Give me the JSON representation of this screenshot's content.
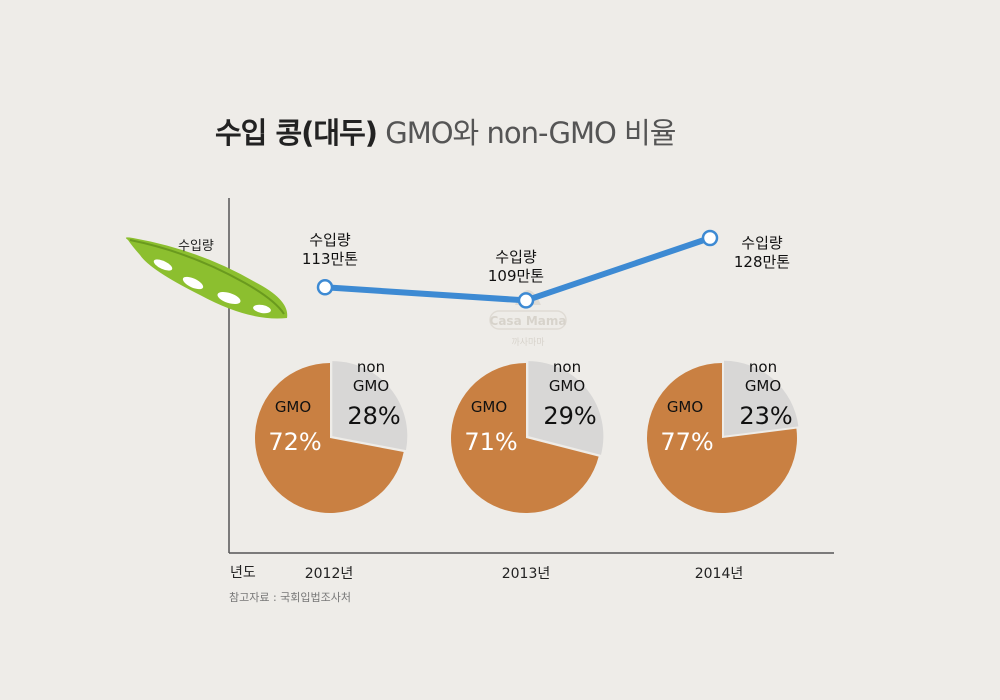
{
  "title": {
    "main": "수입 콩(대두)",
    "rest": " GMO와 non-GMO 비율"
  },
  "chart_data": {
    "type": "line+pie",
    "title": "수입 콩(대두) GMO와 non-GMO 비율",
    "xlabel": "년도",
    "ylabel": "수입량",
    "categories": [
      "2012년",
      "2013년",
      "2014년"
    ],
    "import_volume": {
      "unit": "만톤",
      "values": [
        113,
        109,
        128
      ],
      "labels": [
        {
          "line1": "수입량",
          "line2": "113만톤"
        },
        {
          "line1": "수입량",
          "line2": "109만톤"
        },
        {
          "line1": "수입량",
          "line2": "128만톤"
        }
      ],
      "ylim": [
        100,
        135
      ]
    },
    "pies": [
      {
        "year": "2012년",
        "gmo": 72,
        "non_gmo": 28,
        "gmo_label": "GMO",
        "gmo_pct": "72%",
        "non1": "non",
        "non2": "GMO",
        "non_pct": "28%"
      },
      {
        "year": "2013년",
        "gmo": 71,
        "non_gmo": 29,
        "gmo_label": "GMO",
        "gmo_pct": "71%",
        "non1": "non",
        "non2": "GMO",
        "non_pct": "29%"
      },
      {
        "year": "2014년",
        "gmo": 77,
        "non_gmo": 23,
        "gmo_label": "GMO",
        "gmo_pct": "77%",
        "non1": "non",
        "non2": "GMO",
        "non_pct": "23%"
      }
    ],
    "colors": {
      "gmo": "#c98042",
      "non_gmo": "#d8d7d6",
      "line": "#3d8ad3",
      "axis": "#555555"
    }
  },
  "source": "참고자료 : 국회입법조사처",
  "watermark": {
    "brand": "Casa Mama",
    "sub": "까사마마"
  }
}
